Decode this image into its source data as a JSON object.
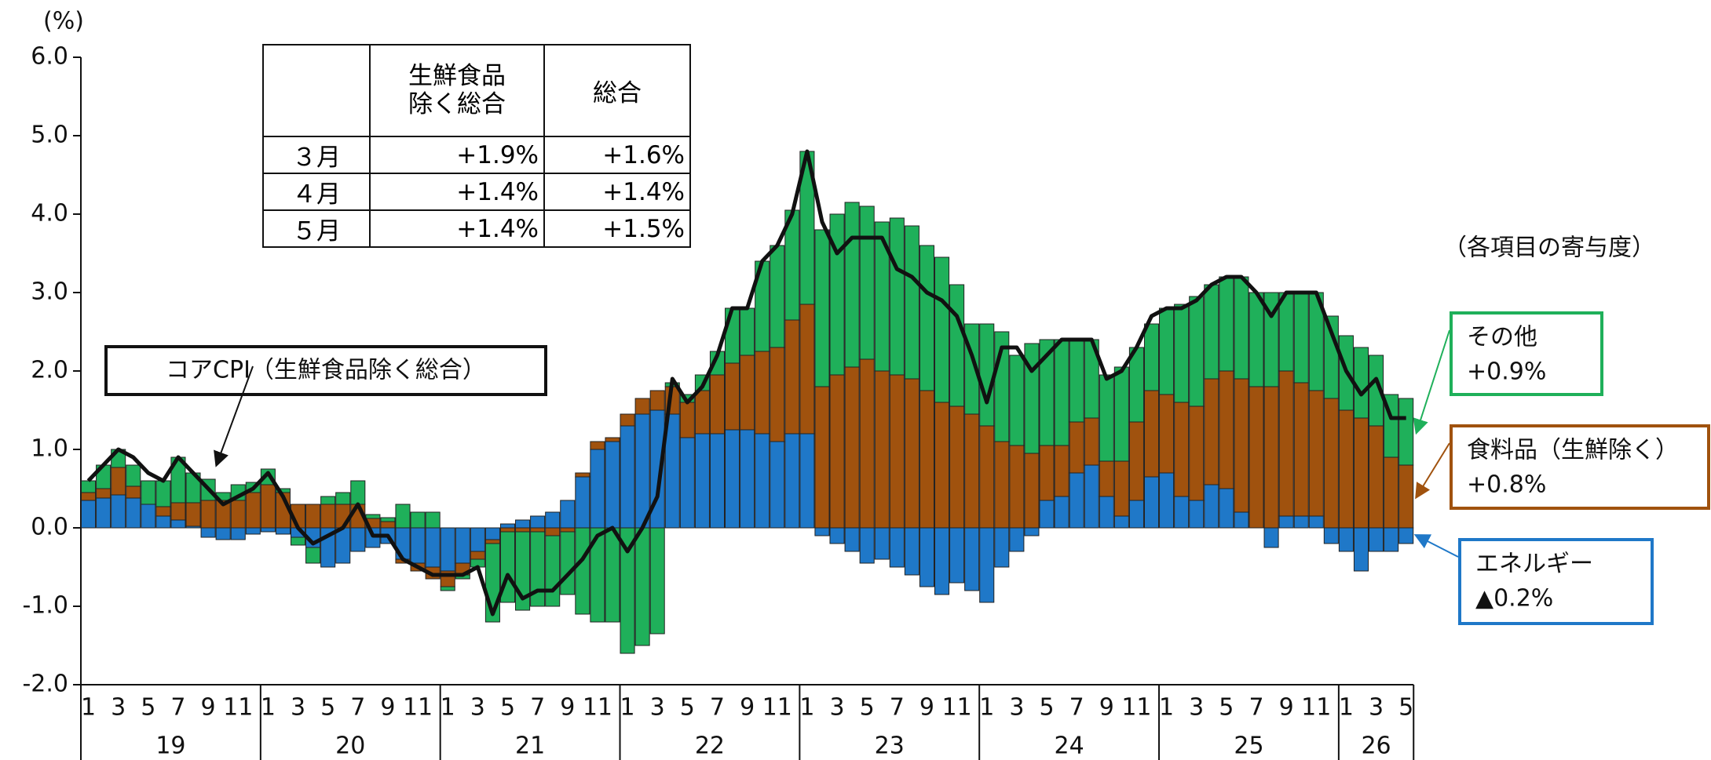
{
  "chart_data": {
    "type": "bar",
    "stacked": true,
    "y_unit": "(%)",
    "note": "（各項目の寄与度）",
    "ylim": [
      -2,
      6
    ],
    "yticks": [
      {
        "value": 6,
        "label": "6.0"
      },
      {
        "value": 5,
        "label": "5.0"
      },
      {
        "value": 4,
        "label": "4.0"
      },
      {
        "value": 3,
        "label": "3.0"
      },
      {
        "value": 2,
        "label": "2.0"
      },
      {
        "value": 1,
        "label": "1.0"
      },
      {
        "value": 0,
        "label": "0.0"
      },
      {
        "value": -1,
        "label": "-1.0"
      },
      {
        "value": -2,
        "label": "-2.0"
      }
    ],
    "categories": [
      "1",
      null,
      "3",
      null,
      "5",
      null,
      "7",
      null,
      "9",
      null,
      "11",
      null,
      "1",
      null,
      "3",
      null,
      "5",
      null,
      "7",
      null,
      "9",
      null,
      "11",
      null,
      "1",
      null,
      "3",
      null,
      "5",
      null,
      "7",
      null,
      "9",
      null,
      "11",
      null,
      "1",
      null,
      "3",
      null,
      "5",
      null,
      "7",
      null,
      "9",
      null,
      "11",
      null,
      "1",
      null,
      "3",
      null,
      "5",
      null,
      "7",
      null,
      "9",
      null,
      "11",
      null,
      "1",
      null,
      "3",
      null,
      "5",
      null,
      "7",
      null,
      "9",
      null,
      "11",
      null,
      "1",
      null,
      "3",
      null,
      "5",
      null,
      "7",
      null,
      "9",
      null,
      "11",
      null,
      "1",
      null,
      "3",
      null,
      "5"
    ],
    "x_groups": [
      "19",
      "20",
      "21",
      "22",
      "23",
      "24",
      "25",
      "26"
    ],
    "series": [
      {
        "name": "エネルギー",
        "label": "▲0.2%",
        "color": "#1f78c8",
        "values": [
          0.35,
          0.38,
          0.42,
          0.38,
          0.3,
          0.15,
          0.1,
          0.02,
          -0.12,
          -0.15,
          -0.15,
          -0.08,
          -0.05,
          -0.08,
          -0.12,
          -0.25,
          -0.5,
          -0.45,
          -0.3,
          -0.25,
          -0.2,
          -0.4,
          -0.45,
          -0.5,
          -0.55,
          -0.45,
          -0.3,
          -0.15,
          0.05,
          0.1,
          0.15,
          0.2,
          0.35,
          0.65,
          1.0,
          1.1,
          1.3,
          1.45,
          1.5,
          1.45,
          1.15,
          1.2,
          1.2,
          1.25,
          1.25,
          1.2,
          1.1,
          1.2,
          1.2,
          -0.1,
          -0.2,
          -0.3,
          -0.45,
          -0.4,
          -0.5,
          -0.6,
          -0.75,
          -0.85,
          -0.7,
          -0.8,
          -0.95,
          -0.5,
          -0.3,
          -0.1,
          0.35,
          0.4,
          0.7,
          0.8,
          0.4,
          0.15,
          0.35,
          0.65,
          0.7,
          0.4,
          0.35,
          0.55,
          0.5,
          0.2,
          0,
          -0.25,
          0.15,
          0.15,
          0.15,
          -0.2,
          -0.3,
          -0.55,
          -0.3,
          -0.3,
          -0.2
        ]
      },
      {
        "name": "食料品（生鮮除く）",
        "label": "+0.8%",
        "color": "#a0520e",
        "values": [
          0.1,
          0.12,
          0.35,
          0.15,
          0,
          0.12,
          0.22,
          0.3,
          0.35,
          0.35,
          0.35,
          0.45,
          0.55,
          0.45,
          0.3,
          0.3,
          0.3,
          0.3,
          0.3,
          0.12,
          0.08,
          -0.05,
          -0.1,
          -0.15,
          -0.2,
          -0.15,
          -0.1,
          -0.05,
          -0.05,
          -0.05,
          -0.05,
          -0.1,
          -0.05,
          0.05,
          0.1,
          0.05,
          0.15,
          0.2,
          0.25,
          0.35,
          0.45,
          0.55,
          0.75,
          0.85,
          0.95,
          1.05,
          1.2,
          1.45,
          1.65,
          1.8,
          1.95,
          2.05,
          2.15,
          2.0,
          1.95,
          1.9,
          1.75,
          1.6,
          1.55,
          1.45,
          1.3,
          1.1,
          1.05,
          0.95,
          0.7,
          0.65,
          0.65,
          0.6,
          0.45,
          0.7,
          1.0,
          1.1,
          1.0,
          1.2,
          1.2,
          1.35,
          1.5,
          1.7,
          1.8,
          1.8,
          1.85,
          1.7,
          1.6,
          1.65,
          1.5,
          1.4,
          1.3,
          0.9,
          0.8
        ]
      },
      {
        "name": "その他",
        "label": "+0.9%",
        "color": "#1fb05a",
        "values": [
          0.15,
          0.3,
          0.23,
          0.27,
          0.3,
          0.33,
          0.58,
          0.38,
          0.27,
          0.1,
          0.2,
          0.13,
          0.2,
          0.05,
          -0.1,
          -0.2,
          0.1,
          0.15,
          0.3,
          0.05,
          0.05,
          0.3,
          0.2,
          0.2,
          -0.05,
          -0.05,
          -0.1,
          -1.0,
          -0.9,
          -1.0,
          -0.95,
          -0.9,
          -0.8,
          -1.1,
          -1.2,
          -1.2,
          -1.6,
          -1.5,
          -1.35,
          0.05,
          0.1,
          0.2,
          0.3,
          0.7,
          0.6,
          1.15,
          1.3,
          1.4,
          1.95,
          2.0,
          2.05,
          2.1,
          1.95,
          1.9,
          2.0,
          1.95,
          1.85,
          1.85,
          1.55,
          1.15,
          1.3,
          1.4,
          1.15,
          1.4,
          1.35,
          1.35,
          1.05,
          1.0,
          1.1,
          1.2,
          0.95,
          0.85,
          1.1,
          1.25,
          1.4,
          1.2,
          1.2,
          1.3,
          1.2,
          1.2,
          1.0,
          1.15,
          1.25,
          1.05,
          0.95,
          0.9,
          0.9,
          0.8,
          0.85
        ]
      }
    ],
    "line": {
      "name": "コアCPI（生鮮食品除く総合）",
      "color": "#111111",
      "values": [
        0.6,
        0.8,
        1.0,
        0.9,
        0.7,
        0.6,
        0.9,
        0.7,
        0.5,
        0.3,
        0.4,
        0.5,
        0.7,
        0.4,
        0,
        -0.2,
        -0.1,
        0,
        0.3,
        -0.1,
        -0.1,
        -0.4,
        -0.5,
        -0.6,
        -0.6,
        -0.6,
        -0.5,
        -1.1,
        -0.6,
        -0.9,
        -0.8,
        -0.8,
        -0.6,
        -0.4,
        -0.1,
        0,
        -0.3,
        0,
        0.4,
        1.9,
        1.6,
        1.8,
        2.2,
        2.8,
        2.8,
        3.4,
        3.6,
        4.0,
        4.8,
        3.9,
        3.5,
        3.7,
        3.7,
        3.7,
        3.3,
        3.2,
        3.0,
        2.9,
        2.7,
        2.2,
        1.6,
        2.3,
        2.3,
        2.0,
        2.2,
        2.4,
        2.4,
        2.4,
        1.9,
        2.0,
        2.3,
        2.7,
        2.8,
        2.8,
        2.9,
        3.1,
        3.2,
        3.2,
        3.0,
        2.7,
        3.0,
        3.0,
        3.0,
        2.5,
        2.0,
        1.7,
        1.9,
        1.4,
        1.4
      ]
    }
  },
  "table": {
    "columns": [
      "生鮮食品除く総合",
      "総合"
    ],
    "rows": [
      [
        "３月",
        "+1.9%",
        "+1.6%"
      ],
      [
        "４月",
        "+1.4%",
        "+1.4%"
      ],
      [
        "５月",
        "+1.4%",
        "+1.5%"
      ]
    ]
  }
}
